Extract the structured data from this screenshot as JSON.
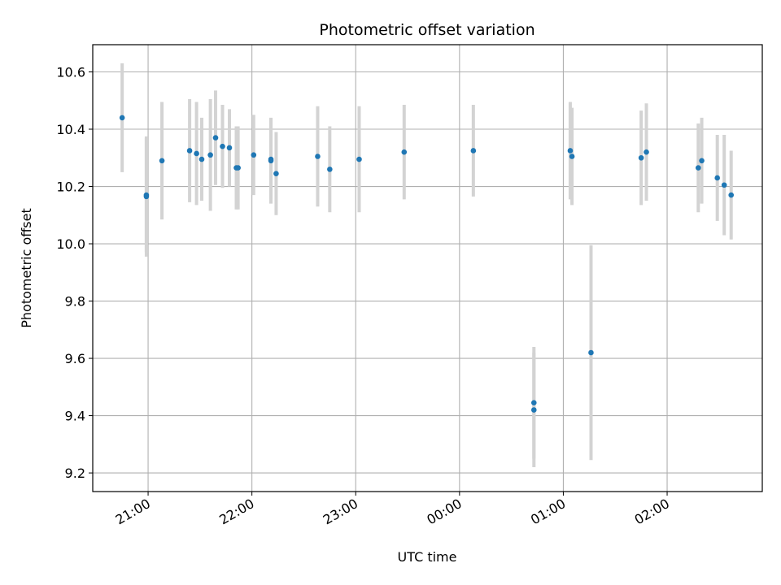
{
  "chart_data": {
    "type": "scatter",
    "title": "Photometric offset variation",
    "xlabel": "UTC time",
    "ylabel": "Photometric offset",
    "xlim": [
      "20:28",
      "02:55"
    ],
    "ylim": [
      9.135,
      10.695
    ],
    "grid": true,
    "point_color": "#1f77b4",
    "errorbar_color": "#d3d3d3",
    "x_ticks": [
      "21:00",
      "22:00",
      "23:00",
      "00:00",
      "01:00",
      "02:00"
    ],
    "y_ticks": [
      "9.2",
      "9.4",
      "9.6",
      "9.8",
      "10.0",
      "10.2",
      "10.4",
      "10.6"
    ],
    "points": [
      {
        "x": "20:45",
        "y": 10.44,
        "err": 0.19
      },
      {
        "x": "20:59",
        "y": 10.165,
        "err": 0.21
      },
      {
        "x": "20:59",
        "y": 10.17,
        "err": 0.2
      },
      {
        "x": "21:08",
        "y": 10.29,
        "err": 0.205
      },
      {
        "x": "21:24",
        "y": 10.325,
        "err": 0.18
      },
      {
        "x": "21:28",
        "y": 10.315,
        "err": 0.18
      },
      {
        "x": "21:31",
        "y": 10.295,
        "err": 0.145
      },
      {
        "x": "21:36",
        "y": 10.31,
        "err": 0.195
      },
      {
        "x": "21:39",
        "y": 10.37,
        "err": 0.165
      },
      {
        "x": "21:43",
        "y": 10.34,
        "err": 0.145
      },
      {
        "x": "21:47",
        "y": 10.335,
        "err": 0.135
      },
      {
        "x": "21:51",
        "y": 10.265,
        "err": 0.145
      },
      {
        "x": "21:52",
        "y": 10.265,
        "err": 0.145
      },
      {
        "x": "22:01",
        "y": 10.31,
        "err": 0.14
      },
      {
        "x": "22:11",
        "y": 10.295,
        "err": 0.14
      },
      {
        "x": "22:11",
        "y": 10.29,
        "err": 0.15
      },
      {
        "x": "22:14",
        "y": 10.245,
        "err": 0.145
      },
      {
        "x": "22:38",
        "y": 10.305,
        "err": 0.175
      },
      {
        "x": "22:45",
        "y": 10.26,
        "err": 0.15
      },
      {
        "x": "23:02",
        "y": 10.295,
        "err": 0.185
      },
      {
        "x": "23:28",
        "y": 10.32,
        "err": 0.165
      },
      {
        "x": "00:08",
        "y": 10.325,
        "err": 0.16
      },
      {
        "x": "00:43",
        "y": 9.42,
        "err": 0.2
      },
      {
        "x": "00:43",
        "y": 9.445,
        "err": 0.195
      },
      {
        "x": "01:04",
        "y": 10.325,
        "err": 0.17
      },
      {
        "x": "01:05",
        "y": 10.305,
        "err": 0.17
      },
      {
        "x": "01:16",
        "y": 9.62,
        "err": 0.375
      },
      {
        "x": "01:45",
        "y": 10.3,
        "err": 0.165
      },
      {
        "x": "01:48",
        "y": 10.32,
        "err": 0.17
      },
      {
        "x": "02:18",
        "y": 10.265,
        "err": 0.155
      },
      {
        "x": "02:20",
        "y": 10.29,
        "err": 0.15
      },
      {
        "x": "02:29",
        "y": 10.23,
        "err": 0.15
      },
      {
        "x": "02:33",
        "y": 10.205,
        "err": 0.175
      },
      {
        "x": "02:37",
        "y": 10.17,
        "err": 0.155
      }
    ]
  }
}
